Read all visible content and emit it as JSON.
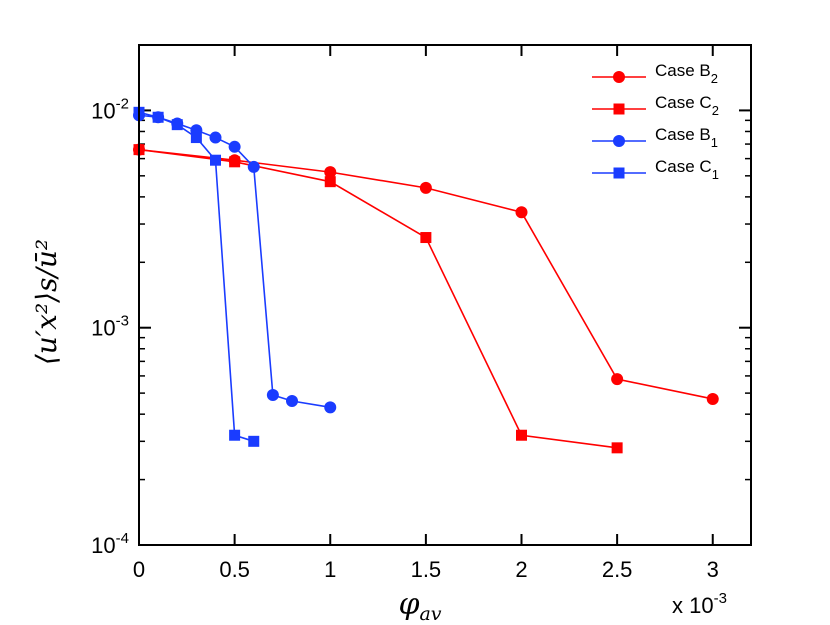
{
  "chart_data": {
    "type": "line",
    "yscale": "log",
    "xlabel": "φ",
    "xlabel_subscript": "av",
    "ylabel": "⟨u′x²⟩s/ū²",
    "x_multiplier": "x 10",
    "x_multiplier_exponent": "-3",
    "xlim": [
      0,
      3.2
    ],
    "ylim": [
      0.0001,
      0.02
    ],
    "x_ticks": [
      0,
      0.5,
      1,
      1.5,
      2,
      2.5,
      3
    ],
    "x_tick_labels": [
      "0",
      "0.5",
      "1",
      "1.5",
      "2",
      "2.5",
      "3"
    ],
    "y_ticks": [
      {
        "value": 0.0001,
        "base": "10",
        "exp": "-4"
      },
      {
        "value": 0.001,
        "base": "10",
        "exp": "-3"
      },
      {
        "value": 0.01,
        "base": "10",
        "exp": "-2"
      }
    ],
    "legend_position": "top-right",
    "series": [
      {
        "name": "Case B",
        "sub": "2",
        "color": "#ff0000",
        "marker": "circle",
        "x": [
          0,
          0.5,
          1,
          1.5,
          2,
          2.5,
          3
        ],
        "y": [
          0.0066,
          0.0059,
          0.0052,
          0.0044,
          0.0034,
          0.00058,
          0.00047
        ]
      },
      {
        "name": "Case C",
        "sub": "2",
        "color": "#ff0000",
        "marker": "square",
        "x": [
          0,
          0.5,
          1,
          1.5,
          2,
          2.5
        ],
        "y": [
          0.0066,
          0.0058,
          0.0047,
          0.0026,
          0.00032,
          0.00028
        ]
      },
      {
        "name": "Case B",
        "sub": "1",
        "color": "#1a3cff",
        "marker": "circle",
        "x": [
          0,
          0.1,
          0.2,
          0.3,
          0.4,
          0.5,
          0.6,
          0.7,
          0.8,
          1.0
        ],
        "y": [
          0.0095,
          0.0093,
          0.0087,
          0.0081,
          0.0075,
          0.0068,
          0.0055,
          0.00049,
          0.00046,
          0.00043
        ]
      },
      {
        "name": "Case C",
        "sub": "1",
        "color": "#1a3cff",
        "marker": "square",
        "x": [
          0,
          0.1,
          0.2,
          0.3,
          0.4,
          0.5,
          0.6
        ],
        "y": [
          0.0098,
          0.0093,
          0.0086,
          0.0075,
          0.0059,
          0.00032,
          0.0003
        ]
      }
    ]
  }
}
